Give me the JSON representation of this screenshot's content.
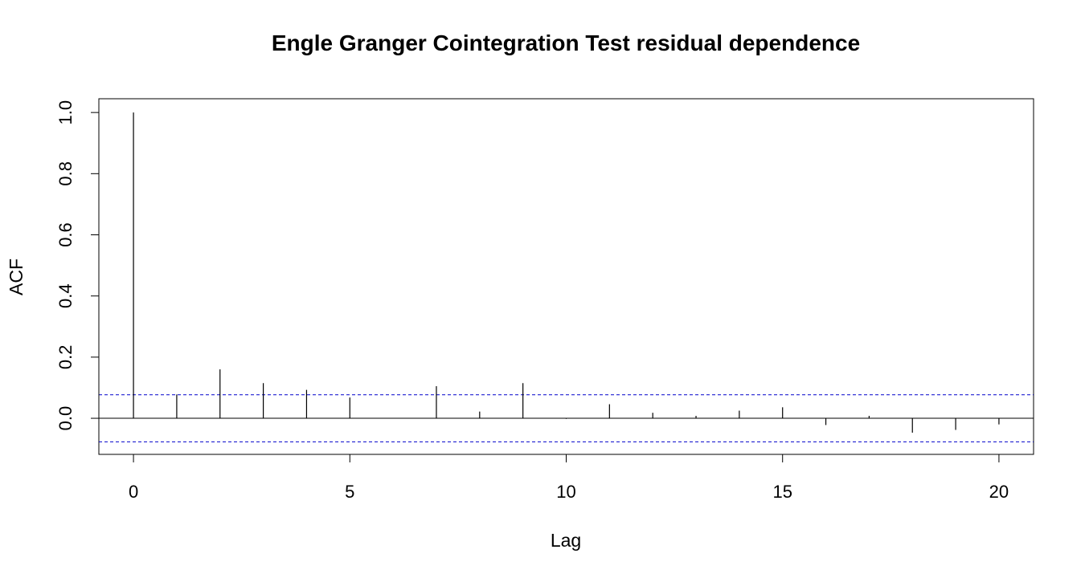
{
  "chart_data": {
    "type": "bar",
    "title": "Engle Granger Cointegration Test residual dependence",
    "xlabel": "Lag",
    "ylabel": "ACF",
    "xlim": [
      -0.8,
      20.8
    ],
    "ylim": [
      -0.118,
      1.045
    ],
    "x_ticks": [
      0,
      5,
      10,
      15,
      20
    ],
    "x_tick_labels": [
      "0",
      "5",
      "10",
      "15",
      "20"
    ],
    "y_ticks": [
      0.0,
      0.2,
      0.4,
      0.6,
      0.8,
      1.0
    ],
    "y_tick_labels": [
      "0.0",
      "0.2",
      "0.4",
      "0.6",
      "0.8",
      "1.0"
    ],
    "lags": [
      0,
      1,
      2,
      3,
      4,
      5,
      6,
      7,
      8,
      9,
      10,
      11,
      12,
      13,
      14,
      15,
      16,
      17,
      18,
      19,
      20
    ],
    "acf": [
      1.0,
      0.078,
      0.16,
      0.115,
      0.093,
      0.068,
      0.0,
      0.105,
      0.022,
      0.115,
      -0.002,
      0.046,
      0.018,
      0.008,
      0.025,
      0.036,
      -0.022,
      0.008,
      -0.047,
      -0.038,
      -0.02
    ],
    "confidence_bound": 0.077,
    "zero_line": true,
    "grid": false,
    "colors": {
      "bars": "#000000",
      "ci_line": "#0000cc",
      "zero_line": "#000000",
      "frame": "#000000"
    }
  }
}
